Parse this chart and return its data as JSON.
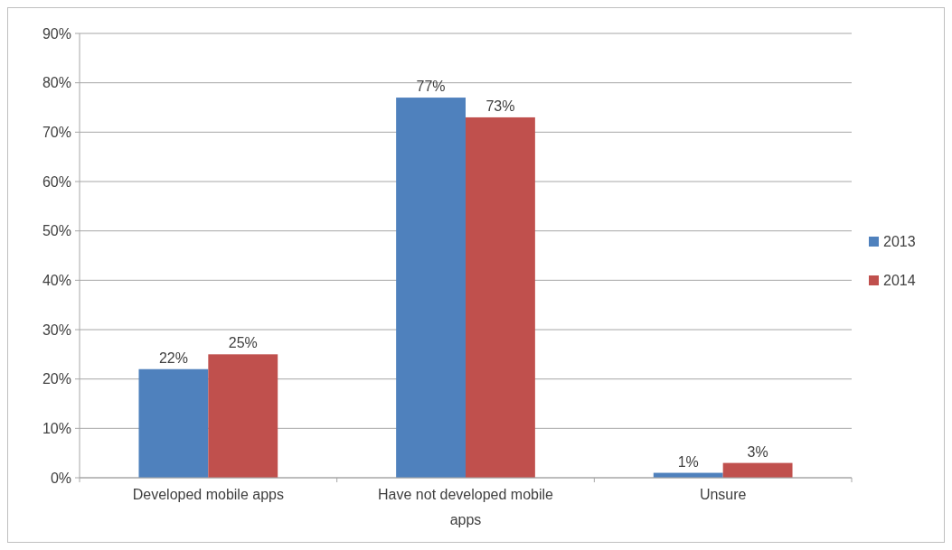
{
  "chart_data": {
    "type": "bar",
    "categories": [
      "Developed mobile apps",
      "Have not developed mobile apps",
      "Unsure"
    ],
    "series": [
      {
        "name": "2013",
        "color": "#4f81bd",
        "values": [
          22,
          77,
          1
        ],
        "value_labels": [
          "22%",
          "77%",
          "1%"
        ]
      },
      {
        "name": "2014",
        "color": "#c0504d",
        "values": [
          25,
          73,
          3
        ],
        "value_labels": [
          "25%",
          "73%",
          "3%"
        ]
      }
    ],
    "ylim": [
      0,
      90
    ],
    "yticks": [
      {
        "value": 0,
        "label": "0%"
      },
      {
        "value": 10,
        "label": "10%"
      },
      {
        "value": 20,
        "label": "20%"
      },
      {
        "value": 30,
        "label": "30%"
      },
      {
        "value": 40,
        "label": "40%"
      },
      {
        "value": 50,
        "label": "50%"
      },
      {
        "value": 60,
        "label": "60%"
      },
      {
        "value": 70,
        "label": "70%"
      },
      {
        "value": 80,
        "label": "80%"
      },
      {
        "value": 90,
        "label": "90%"
      }
    ],
    "grid": "y",
    "legend": "right"
  }
}
